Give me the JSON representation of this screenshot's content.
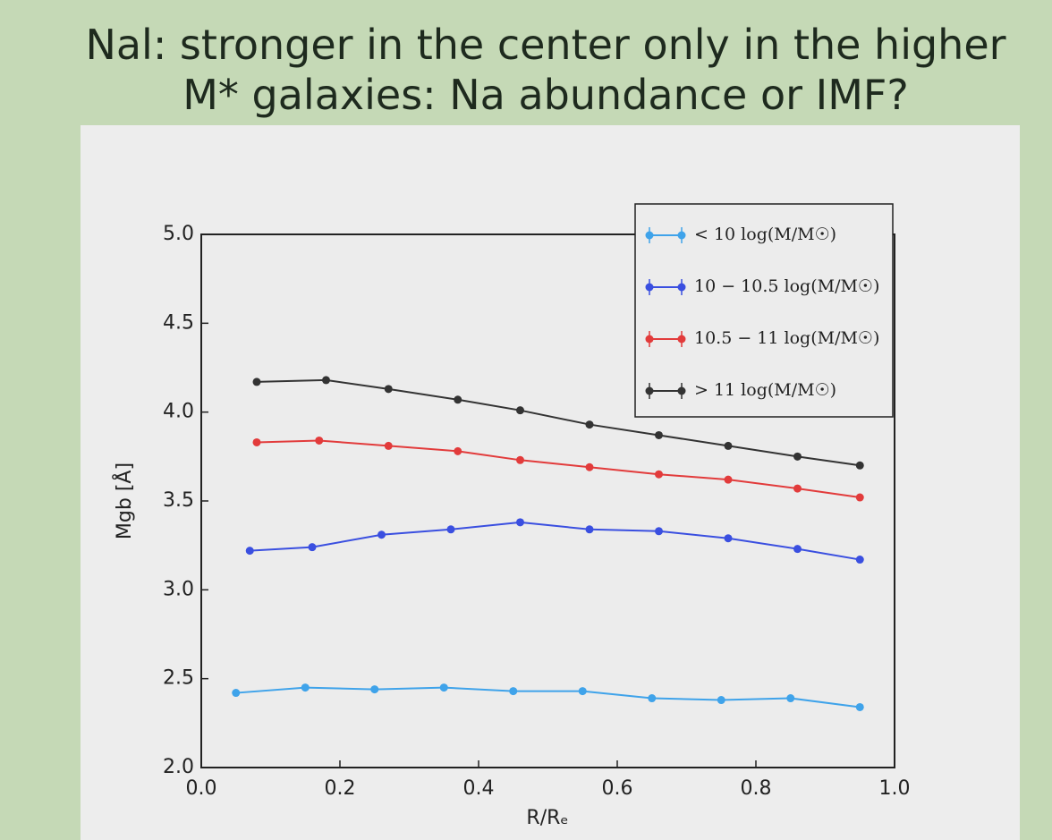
{
  "chart_data": {
    "type": "line",
    "title": "Nal: stronger in the center only in the higher M* galaxies: Na abundance or IMF?",
    "x_label": "R/Rₑ",
    "y_label": "Mgb [Å]",
    "xlim": [
      0,
      1
    ],
    "ylim": [
      2,
      5
    ],
    "xticks": [
      {
        "value": 0,
        "label": "0.0"
      },
      0.2,
      0.4,
      0.6,
      0.8,
      {
        "value": 1,
        "label": "1.0"
      }
    ],
    "yticks": [
      {
        "value": 2,
        "label": "2.0"
      },
      2.5,
      {
        "value": 3,
        "label": "3.0"
      },
      3.5,
      {
        "value": 4,
        "label": "4.0"
      },
      4.5,
      {
        "value": 5,
        "label": "5.0"
      }
    ],
    "legend": "upper right",
    "series": [
      {
        "name": "< 10 log(M/M☉)",
        "color": "#3fa3ea",
        "x": [
          0.05,
          0.15,
          0.25,
          0.35,
          0.45,
          0.55,
          0.65,
          0.75,
          0.85,
          0.95
        ],
        "values": [
          2.42,
          2.45,
          2.44,
          2.45,
          2.43,
          2.43,
          2.39,
          2.38,
          2.39,
          2.34
        ]
      },
      {
        "name": "10 − 10.5 log(M/M☉)",
        "color": "#3a4fe0",
        "x": [
          0.07,
          0.16,
          0.26,
          0.36,
          0.46,
          0.56,
          0.66,
          0.76,
          0.86,
          0.95
        ],
        "values": [
          3.22,
          3.24,
          3.31,
          3.34,
          3.38,
          3.34,
          3.33,
          3.29,
          3.23,
          3.17
        ]
      },
      {
        "name": "10.5 − 11 log(M/M☉)",
        "color": "#e23b3b",
        "x": [
          0.08,
          0.17,
          0.27,
          0.37,
          0.46,
          0.56,
          0.66,
          0.76,
          0.86,
          0.95
        ],
        "values": [
          3.83,
          3.84,
          3.81,
          3.78,
          3.73,
          3.69,
          3.65,
          3.62,
          3.57,
          3.52
        ]
      },
      {
        "name": "> 11 log(M/M☉)",
        "color": "#333333",
        "x": [
          0.08,
          0.18,
          0.27,
          0.37,
          0.46,
          0.56,
          0.66,
          0.76,
          0.86,
          0.95
        ],
        "values": [
          4.17,
          4.18,
          4.13,
          4.07,
          4.01,
          3.93,
          3.87,
          3.81,
          3.75,
          3.7
        ]
      }
    ]
  }
}
